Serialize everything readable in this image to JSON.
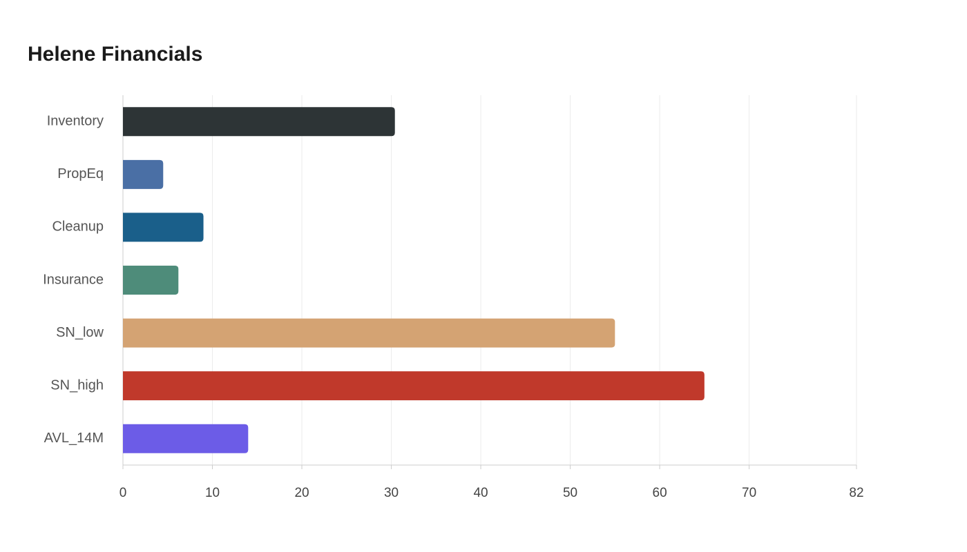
{
  "chart_data": {
    "type": "bar",
    "orientation": "horizontal",
    "title": "Helene Financials",
    "categories": [
      "Inventory",
      "PropEq",
      "Cleanup",
      "Insurance",
      "SN_low",
      "SN_high",
      "AVL_14M"
    ],
    "values": [
      30.4,
      4.5,
      9.0,
      6.2,
      55.0,
      65.0,
      14.0
    ],
    "colors": [
      "#2d3436",
      "#4a6fa5",
      "#1a5f8a",
      "#4e8c7a",
      "#d4a373",
      "#c0392b",
      "#6c5ce7"
    ],
    "xlim": [
      0,
      82
    ],
    "xticks": [
      0,
      10,
      20,
      30,
      40,
      50,
      60,
      70,
      82
    ],
    "grid": true
  }
}
